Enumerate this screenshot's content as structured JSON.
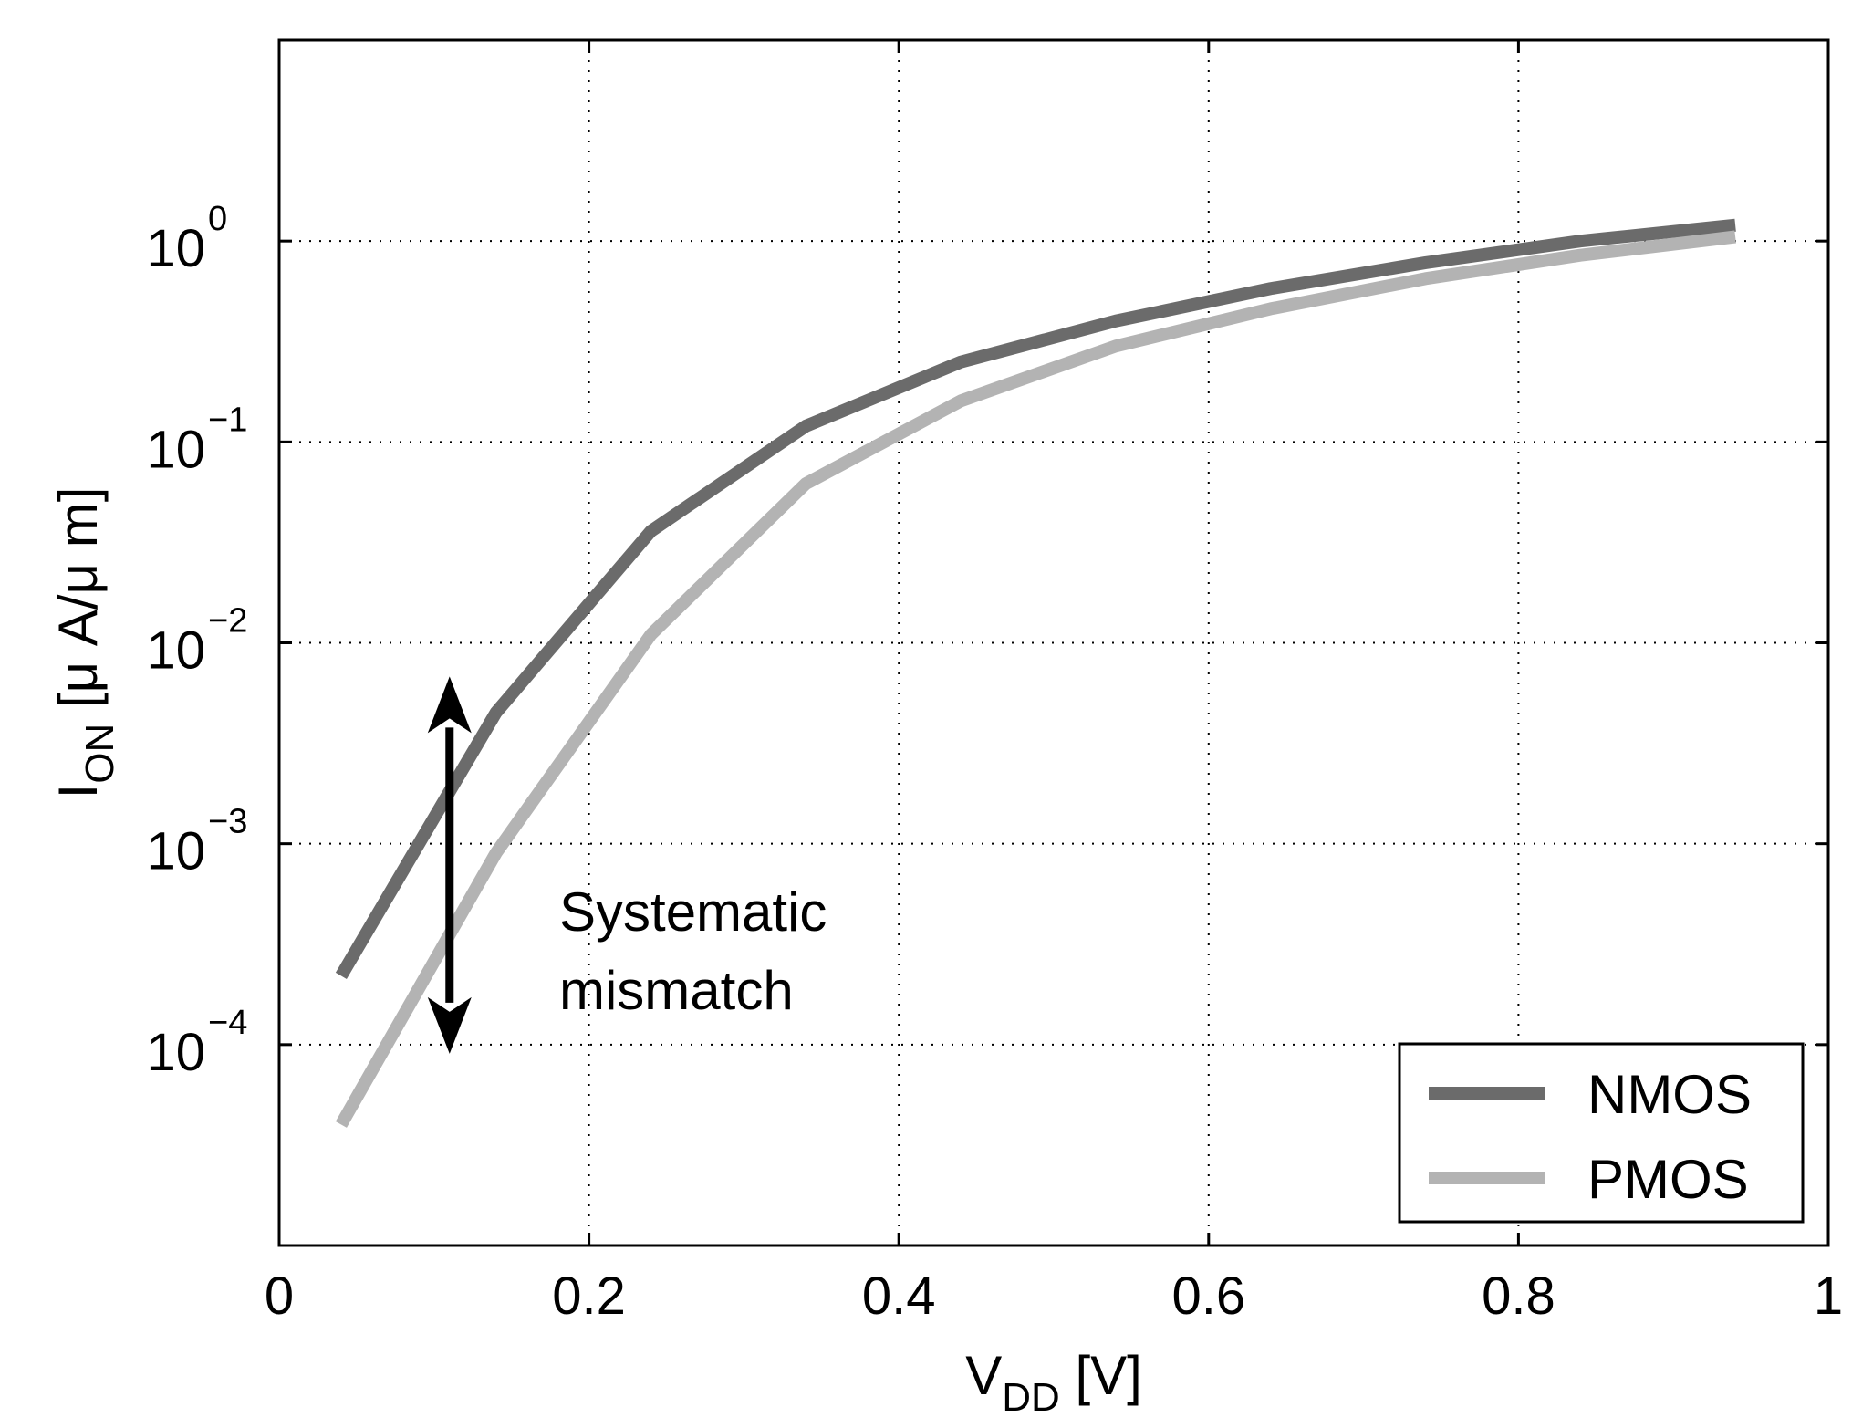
{
  "chart_data": {
    "type": "line",
    "title": "",
    "xlabel": {
      "main": "V",
      "sub": "DD",
      "rest": " [V]"
    },
    "ylabel": {
      "main": "I",
      "sub": "ON",
      "rest": " [μ A/μ m]"
    },
    "xscale": "linear",
    "yscale": "log",
    "xlim": [
      0,
      1
    ],
    "ylim": [
      1e-05,
      10
    ],
    "grid": true,
    "x_ticks": [
      {
        "value": 0,
        "label": "0"
      },
      {
        "value": 0.2,
        "label": "0.2"
      },
      {
        "value": 0.4,
        "label": "0.4"
      },
      {
        "value": 0.6,
        "label": "0.6"
      },
      {
        "value": 0.8,
        "label": "0.8"
      },
      {
        "value": 1,
        "label": "1"
      }
    ],
    "y_ticks": [
      {
        "value": 1,
        "base": "10",
        "exp": "0"
      },
      {
        "value": 0.1,
        "base": "10",
        "exp": "−1"
      },
      {
        "value": 0.01,
        "base": "10",
        "exp": "−2"
      },
      {
        "value": 0.001,
        "base": "10",
        "exp": "−3"
      },
      {
        "value": 0.0001,
        "base": "10",
        "exp": "−4"
      }
    ],
    "x": [
      0.04,
      0.14,
      0.24,
      0.34,
      0.44,
      0.54,
      0.64,
      0.74,
      0.84,
      0.94
    ],
    "series": [
      {
        "name": "NMOS",
        "color": "#6b6b6b",
        "values": [
          0.00022,
          0.0045,
          0.036,
          0.12,
          0.25,
          0.4,
          0.58,
          0.78,
          1.0,
          1.2
        ]
      },
      {
        "name": "PMOS",
        "color": "#b3b3b3",
        "values": [
          4e-05,
          0.0009,
          0.011,
          0.062,
          0.16,
          0.3,
          0.46,
          0.65,
          0.85,
          1.05
        ]
      }
    ],
    "legend_position": "bottom-right",
    "annotation": {
      "lines": [
        "Systematic",
        "mismatch"
      ],
      "arrow_x": 0.11,
      "arrow_y_top": 0.0068,
      "arrow_y_bottom": 9e-05
    }
  }
}
